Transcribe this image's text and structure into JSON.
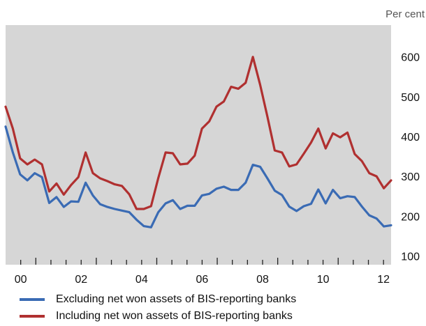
{
  "chart_data": {
    "type": "line",
    "unit_label": "Per cent",
    "x_tick_labels": [
      "00",
      "02",
      "04",
      "06",
      "08",
      "10",
      "12"
    ],
    "x_range": [
      2000.0,
      2012.75
    ],
    "y_ticks": [
      100,
      200,
      300,
      400,
      500,
      600
    ],
    "ylim": [
      78,
      680
    ],
    "grid": false,
    "legend_position": "bottom-left",
    "series": [
      {
        "name": "Excluding net won assets of BIS-reporting banks",
        "color": "#3a6bb4",
        "values": [
          425,
          360,
          305,
          290,
          308,
          298,
          233,
          248,
          223,
          237,
          236,
          284,
          252,
          230,
          223,
          218,
          214,
          210,
          191,
          175,
          172,
          210,
          232,
          240,
          218,
          226,
          226,
          252,
          256,
          269,
          274,
          266,
          266,
          284,
          329,
          324,
          295,
          264,
          253,
          224,
          213,
          225,
          231,
          267,
          232,
          266,
          245,
          250,
          248,
          224,
          202,
          194,
          174,
          177
        ]
      },
      {
        "name": "Including net won assets of BIS-reporting banks",
        "color": "#b03030",
        "values": [
          475,
          420,
          345,
          330,
          342,
          330,
          262,
          282,
          254,
          278,
          298,
          360,
          308,
          295,
          288,
          280,
          276,
          255,
          218,
          218,
          225,
          296,
          360,
          358,
          330,
          332,
          352,
          420,
          438,
          475,
          488,
          525,
          520,
          535,
          600,
          530,
          450,
          365,
          360,
          325,
          330,
          357,
          385,
          420,
          370,
          408,
          398,
          410,
          356,
          338,
          308,
          300,
          270,
          290
        ]
      }
    ]
  }
}
